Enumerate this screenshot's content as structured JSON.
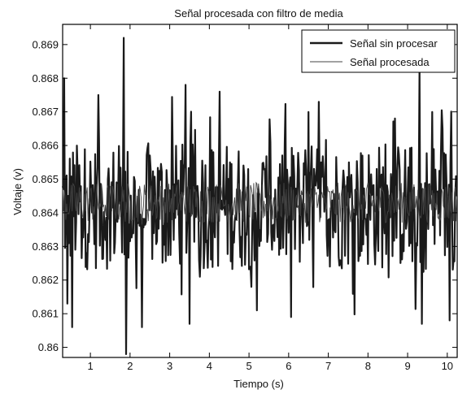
{
  "chart_data": {
    "type": "line",
    "title": "Señal procesada con filtro de media",
    "xlabel": "Tiempo (s)",
    "ylabel": "Voltaje (v)",
    "xlim": [
      0.3,
      10.25
    ],
    "ylim": [
      0.8597,
      0.8696
    ],
    "x_ticks": [
      1,
      2,
      3,
      4,
      5,
      6,
      7,
      8,
      9,
      10
    ],
    "y_ticks": [
      0.86,
      0.861,
      0.862,
      0.863,
      0.864,
      0.865,
      0.866,
      0.867,
      0.868,
      0.869
    ],
    "y_tick_labels": [
      "0.86",
      "0.861",
      "0.862",
      "0.863",
      "0.864",
      "0.865",
      "0.866",
      "0.867",
      "0.868",
      "0.869"
    ],
    "grid": false,
    "legend_position": "top-right",
    "series": [
      {
        "name": "Señal sin procesar",
        "color": "#1a1a1a",
        "style": "thick",
        "x_range": [
          0.3,
          10.25
        ],
        "sample_interval": 0.02,
        "mean": 0.8642,
        "extremes": [
          {
            "x": 0.35,
            "y": 0.868
          },
          {
            "x": 0.42,
            "y": 0.8613
          },
          {
            "x": 0.55,
            "y": 0.8606
          },
          {
            "x": 1.2,
            "y": 0.8675
          },
          {
            "x": 1.85,
            "y": 0.8692
          },
          {
            "x": 1.9,
            "y": 0.8598
          },
          {
            "x": 2.3,
            "y": 0.8606
          },
          {
            "x": 3.4,
            "y": 0.8678
          },
          {
            "x": 3.5,
            "y": 0.8607
          },
          {
            "x": 4.25,
            "y": 0.8676
          },
          {
            "x": 5.2,
            "y": 0.8611
          },
          {
            "x": 6.05,
            "y": 0.8609
          },
          {
            "x": 9.3,
            "y": 0.8683
          },
          {
            "x": 9.35,
            "y": 0.8607
          },
          {
            "x": 10.05,
            "y": 0.8608
          }
        ]
      },
      {
        "name": "Señal procesada",
        "color": "#444444",
        "style": "thin",
        "x_range": [
          0.3,
          10.25
        ],
        "sample_interval": 0.02,
        "mean": 0.8643,
        "band": [
          0.8637,
          0.8649
        ]
      }
    ]
  }
}
